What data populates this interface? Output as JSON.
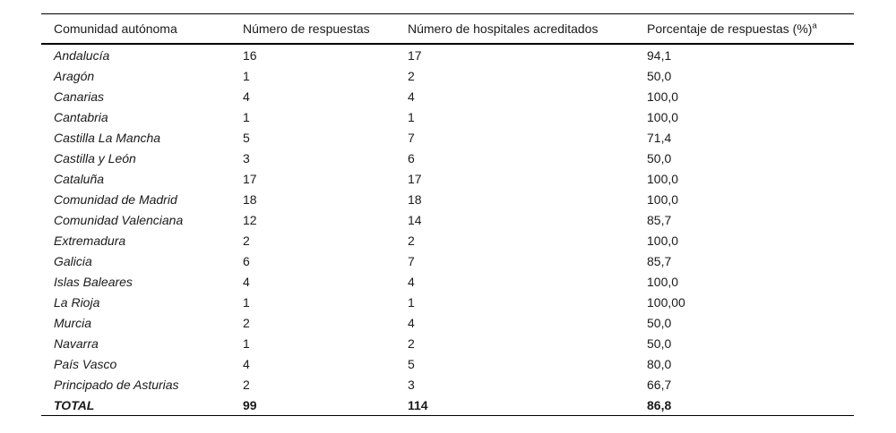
{
  "table": {
    "columns": [
      {
        "label": "Comunidad autónoma"
      },
      {
        "label": "Número de respuestas"
      },
      {
        "label": "Número de hospitales acreditados"
      },
      {
        "label": "Porcentaje de respuestas (%)",
        "superscript": "a"
      }
    ],
    "rows": [
      {
        "comunidad": "Andalucía",
        "respuestas": "16",
        "hospitales": "17",
        "porcentaje": "94,1"
      },
      {
        "comunidad": "Aragón",
        "respuestas": "1",
        "hospitales": "2",
        "porcentaje": "50,0"
      },
      {
        "comunidad": "Canarias",
        "respuestas": "4",
        "hospitales": "4",
        "porcentaje": "100,0"
      },
      {
        "comunidad": "Cantabria",
        "respuestas": "1",
        "hospitales": "1",
        "porcentaje": "100,0"
      },
      {
        "comunidad": "Castilla La Mancha",
        "respuestas": "5",
        "hospitales": "7",
        "porcentaje": "71,4"
      },
      {
        "comunidad": "Castilla y León",
        "respuestas": "3",
        "hospitales": "6",
        "porcentaje": "50,0"
      },
      {
        "comunidad": "Cataluña",
        "respuestas": "17",
        "hospitales": "17",
        "porcentaje": "100,0"
      },
      {
        "comunidad": "Comunidad de Madrid",
        "respuestas": "18",
        "hospitales": "18",
        "porcentaje": "100,0"
      },
      {
        "comunidad": "Comunidad Valenciana",
        "respuestas": "12",
        "hospitales": "14",
        "porcentaje": "85,7"
      },
      {
        "comunidad": "Extremadura",
        "respuestas": "2",
        "hospitales": "2",
        "porcentaje": "100,0"
      },
      {
        "comunidad": "Galicia",
        "respuestas": "6",
        "hospitales": "7",
        "porcentaje": "85,7"
      },
      {
        "comunidad": "Islas Baleares",
        "respuestas": "4",
        "hospitales": "4",
        "porcentaje": "100,0"
      },
      {
        "comunidad": "La Rioja",
        "respuestas": "1",
        "hospitales": "1",
        "porcentaje": "100,00"
      },
      {
        "comunidad": "Murcia",
        "respuestas": "2",
        "hospitales": "4",
        "porcentaje": "50,0"
      },
      {
        "comunidad": "Navarra",
        "respuestas": "1",
        "hospitales": "2",
        "porcentaje": "50,0"
      },
      {
        "comunidad": "País Vasco",
        "respuestas": "4",
        "hospitales": "5",
        "porcentaje": "80,0"
      },
      {
        "comunidad": "Principado de Asturias",
        "respuestas": "2",
        "hospitales": "3",
        "porcentaje": "66,7"
      },
      {
        "comunidad": "TOTAL",
        "respuestas": "99",
        "hospitales": "114",
        "porcentaje": "86,8",
        "is_total": true
      }
    ]
  }
}
